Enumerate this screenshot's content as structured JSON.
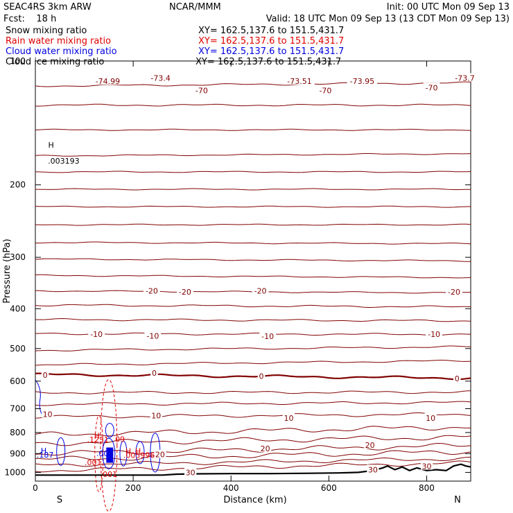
{
  "header": {
    "model": "SEAC4RS  3km ARW",
    "institution": "NCAR/MMM",
    "init": "Init: 00 UTC Mon 09 Sep 13",
    "fcst": "Fcst:    18 h",
    "valid": "Valid: 18 UTC Mon 09 Sep 13 (13 CDT Mon 09 Sep 13)"
  },
  "fields": [
    {
      "name": "Snow mixing ratio",
      "xy": "XY= 162.5,137.6 to 151.5,431.7",
      "color": "#000000"
    },
    {
      "name": "Rain water mixing ratio",
      "xy": "XY= 162.5,137.6 to 151.5,431.7",
      "color": "#e00000"
    },
    {
      "name": "Cloud water mixing ratio",
      "xy": "XY= 162.5,137.6 to 151.5,431.7",
      "color": "#0000e0"
    },
    {
      "name": "Cloud ice mixing ratio",
      "xy": "XY= 162.5,137.6 to 151.5,431.7",
      "color": "#000000"
    }
  ],
  "colors": {
    "isotherm": "#800000",
    "terrain": "#000000",
    "rain": "#e00000",
    "cloud_water": "#0000e0"
  },
  "chart_data": {
    "type": "line",
    "xlabel": "Distance (km)",
    "ylabel": "Pressure (hPa)",
    "xlim": [
      0,
      890
    ],
    "ylim": [
      1050,
      100
    ],
    "y_scale": "log",
    "x_ticks": [
      0,
      200,
      400,
      600,
      800
    ],
    "y_ticks": [
      100,
      200,
      300,
      400,
      500,
      600,
      700,
      800,
      900,
      1000
    ],
    "x_ticks_labels": [
      "0",
      "200",
      "400",
      "600",
      "800"
    ],
    "y_tick_labels": [
      "100",
      "200",
      "300",
      "400",
      "500",
      "600",
      "700",
      "800",
      "900",
      "1000"
    ],
    "endpoints": {
      "left": "S",
      "right": "N"
    },
    "isotherm_levels": [
      {
        "p_left": 115,
        "p_right": 113,
        "amp": 3,
        "thick": false
      },
      {
        "p_left": 128,
        "p_right": 128,
        "amp": 3,
        "thick": false
      },
      {
        "p_left": 147,
        "p_right": 147,
        "amp": 2,
        "thick": false
      },
      {
        "p_left": 170,
        "p_right": 168,
        "amp": 2,
        "thick": false
      },
      {
        "p_left": 186,
        "p_right": 186,
        "amp": 2,
        "thick": false
      },
      {
        "p_left": 205,
        "p_right": 205,
        "amp": 2,
        "thick": false
      },
      {
        "p_left": 226,
        "p_right": 226,
        "amp": 2,
        "thick": false
      },
      {
        "p_left": 250,
        "p_right": 250,
        "amp": 2,
        "thick": false
      },
      {
        "p_left": 276,
        "p_right": 278,
        "amp": 2,
        "thick": false
      },
      {
        "p_left": 303,
        "p_right": 306,
        "amp": 2,
        "thick": false
      },
      {
        "p_left": 332,
        "p_right": 336,
        "amp": 2,
        "thick": false
      },
      {
        "p_left": 362,
        "p_right": 366,
        "amp": 2,
        "thick": false
      },
      {
        "p_left": 392,
        "p_right": 396,
        "amp": 3,
        "thick": false
      },
      {
        "p_left": 425,
        "p_right": 428,
        "amp": 3,
        "thick": false
      },
      {
        "p_left": 460,
        "p_right": 462,
        "amp": 3,
        "thick": false
      },
      {
        "p_left": 505,
        "p_right": 495,
        "amp": 3,
        "thick": false
      },
      {
        "p_left": 548,
        "p_right": 535,
        "amp": 3,
        "thick": false
      },
      {
        "p_left": 578,
        "p_right": 590,
        "amp": 4,
        "thick": true
      },
      {
        "p_left": 640,
        "p_right": 638,
        "amp": 4,
        "thick": false
      },
      {
        "p_left": 683,
        "p_right": 676,
        "amp": 4,
        "thick": false
      },
      {
        "p_left": 733,
        "p_right": 722,
        "amp": 5,
        "thick": false
      },
      {
        "p_left": 810,
        "p_right": 775,
        "amp": 8,
        "thick": false
      },
      {
        "p_left": 850,
        "p_right": 820,
        "amp": 8,
        "thick": false
      },
      {
        "p_left": 900,
        "p_right": 860,
        "amp": 8,
        "thick": false
      },
      {
        "p_left": 930,
        "p_right": 890,
        "amp": 8,
        "thick": false
      },
      {
        "p_left": 960,
        "p_right": 925,
        "amp": 6,
        "thick": false
      },
      {
        "p_left": 990,
        "p_right": 948,
        "amp": 6,
        "thick": false
      }
    ],
    "isotherm_labels": [
      {
        "text": "-74.99",
        "x": 148,
        "p": 112
      },
      {
        "text": "-73.4",
        "x": 256,
        "p": 110
      },
      {
        "text": "-73.51",
        "x": 540,
        "p": 112
      },
      {
        "text": "-73.95",
        "x": 668,
        "p": 112
      },
      {
        "text": "-73.7",
        "x": 878,
        "p": 110
      },
      {
        "text": "-70",
        "x": 340,
        "p": 118
      },
      {
        "text": "-70",
        "x": 593,
        "p": 118
      },
      {
        "text": "-70",
        "x": 810,
        "p": 116
      },
      {
        "text": "-20",
        "x": 238,
        "p": 362
      },
      {
        "text": "-20",
        "x": 306,
        "p": 364
      },
      {
        "text": "-20",
        "x": 460,
        "p": 362
      },
      {
        "text": "-20",
        "x": 856,
        "p": 364
      },
      {
        "text": "-10",
        "x": 125,
        "p": 461
      },
      {
        "text": "-10",
        "x": 240,
        "p": 466
      },
      {
        "text": "-10",
        "x": 475,
        "p": 467
      },
      {
        "text": "-10",
        "x": 815,
        "p": 461
      },
      {
        "text": "0",
        "x": 20,
        "p": 580
      },
      {
        "text": "0",
        "x": 243,
        "p": 573
      },
      {
        "text": "0",
        "x": 462,
        "p": 583
      },
      {
        "text": "0",
        "x": 862,
        "p": 591
      },
      {
        "text": "10",
        "x": 25,
        "p": 722
      },
      {
        "text": "10",
        "x": 247,
        "p": 728
      },
      {
        "text": "10",
        "x": 518,
        "p": 737
      },
      {
        "text": "10",
        "x": 808,
        "p": 737
      },
      {
        "text": "20",
        "x": 470,
        "p": 875
      },
      {
        "text": "20",
        "x": 684,
        "p": 858
      },
      {
        "text": "20",
        "x": 255,
        "p": 905
      },
      {
        "text": "30",
        "x": 317,
        "p": 1000
      },
      {
        "text": "30",
        "x": 690,
        "p": 984
      },
      {
        "text": "30",
        "x": 800,
        "p": 966
      }
    ],
    "extrema_labels": [
      {
        "text": "H",
        "x": 32,
        "p": 160,
        "color": "#000000"
      },
      {
        "text": ".003193",
        "x": 58,
        "p": 175,
        "color": "#000000"
      },
      {
        "text": "H",
        "x": 17,
        "p": 886,
        "color": "#0000e0"
      },
      {
        "text": ".187",
        "x": 20,
        "p": 906,
        "color": "#0000e0"
      },
      {
        "text": "H",
        "x": 126,
        "p": 815,
        "color": "#e00000"
      },
      {
        "text": ".1231",
        "x": 128,
        "p": 832,
        "color": "#e00000"
      },
      {
        "text": "09",
        "x": 173,
        "p": 830,
        "color": "#e00000"
      },
      {
        "text": ".001",
        "x": 142,
        "p": 899,
        "color": "#0000e0"
      },
      {
        "text": "H",
        "x": 190,
        "p": 887,
        "color": "#e00000"
      },
      {
        "text": "H",
        "x": 210,
        "p": 887,
        "color": "#e00000"
      },
      {
        "text": ".005996",
        "x": 212,
        "p": 907,
        "color": "#e00000"
      },
      {
        "text": ".001",
        "x": 118,
        "p": 945,
        "color": "#e00000"
      },
      {
        "text": ".001",
        "x": 150,
        "p": 1010,
        "color": "#e00000"
      }
    ],
    "terrain": [
      [
        0,
        1015
      ],
      [
        150,
        1015
      ],
      [
        260,
        1015
      ],
      [
        290,
        1010
      ],
      [
        330,
        1008
      ],
      [
        400,
        1007
      ],
      [
        480,
        1007
      ],
      [
        560,
        1005
      ],
      [
        620,
        1003
      ],
      [
        660,
        1000
      ],
      [
        690,
        990
      ],
      [
        710,
        975
      ],
      [
        720,
        965
      ],
      [
        735,
        985
      ],
      [
        750,
        970
      ],
      [
        765,
        990
      ],
      [
        780,
        975
      ],
      [
        800,
        990
      ],
      [
        820,
        985
      ],
      [
        840,
        990
      ],
      [
        855,
        965
      ],
      [
        870,
        955
      ],
      [
        880,
        965
      ],
      [
        890,
        970
      ]
    ]
  }
}
